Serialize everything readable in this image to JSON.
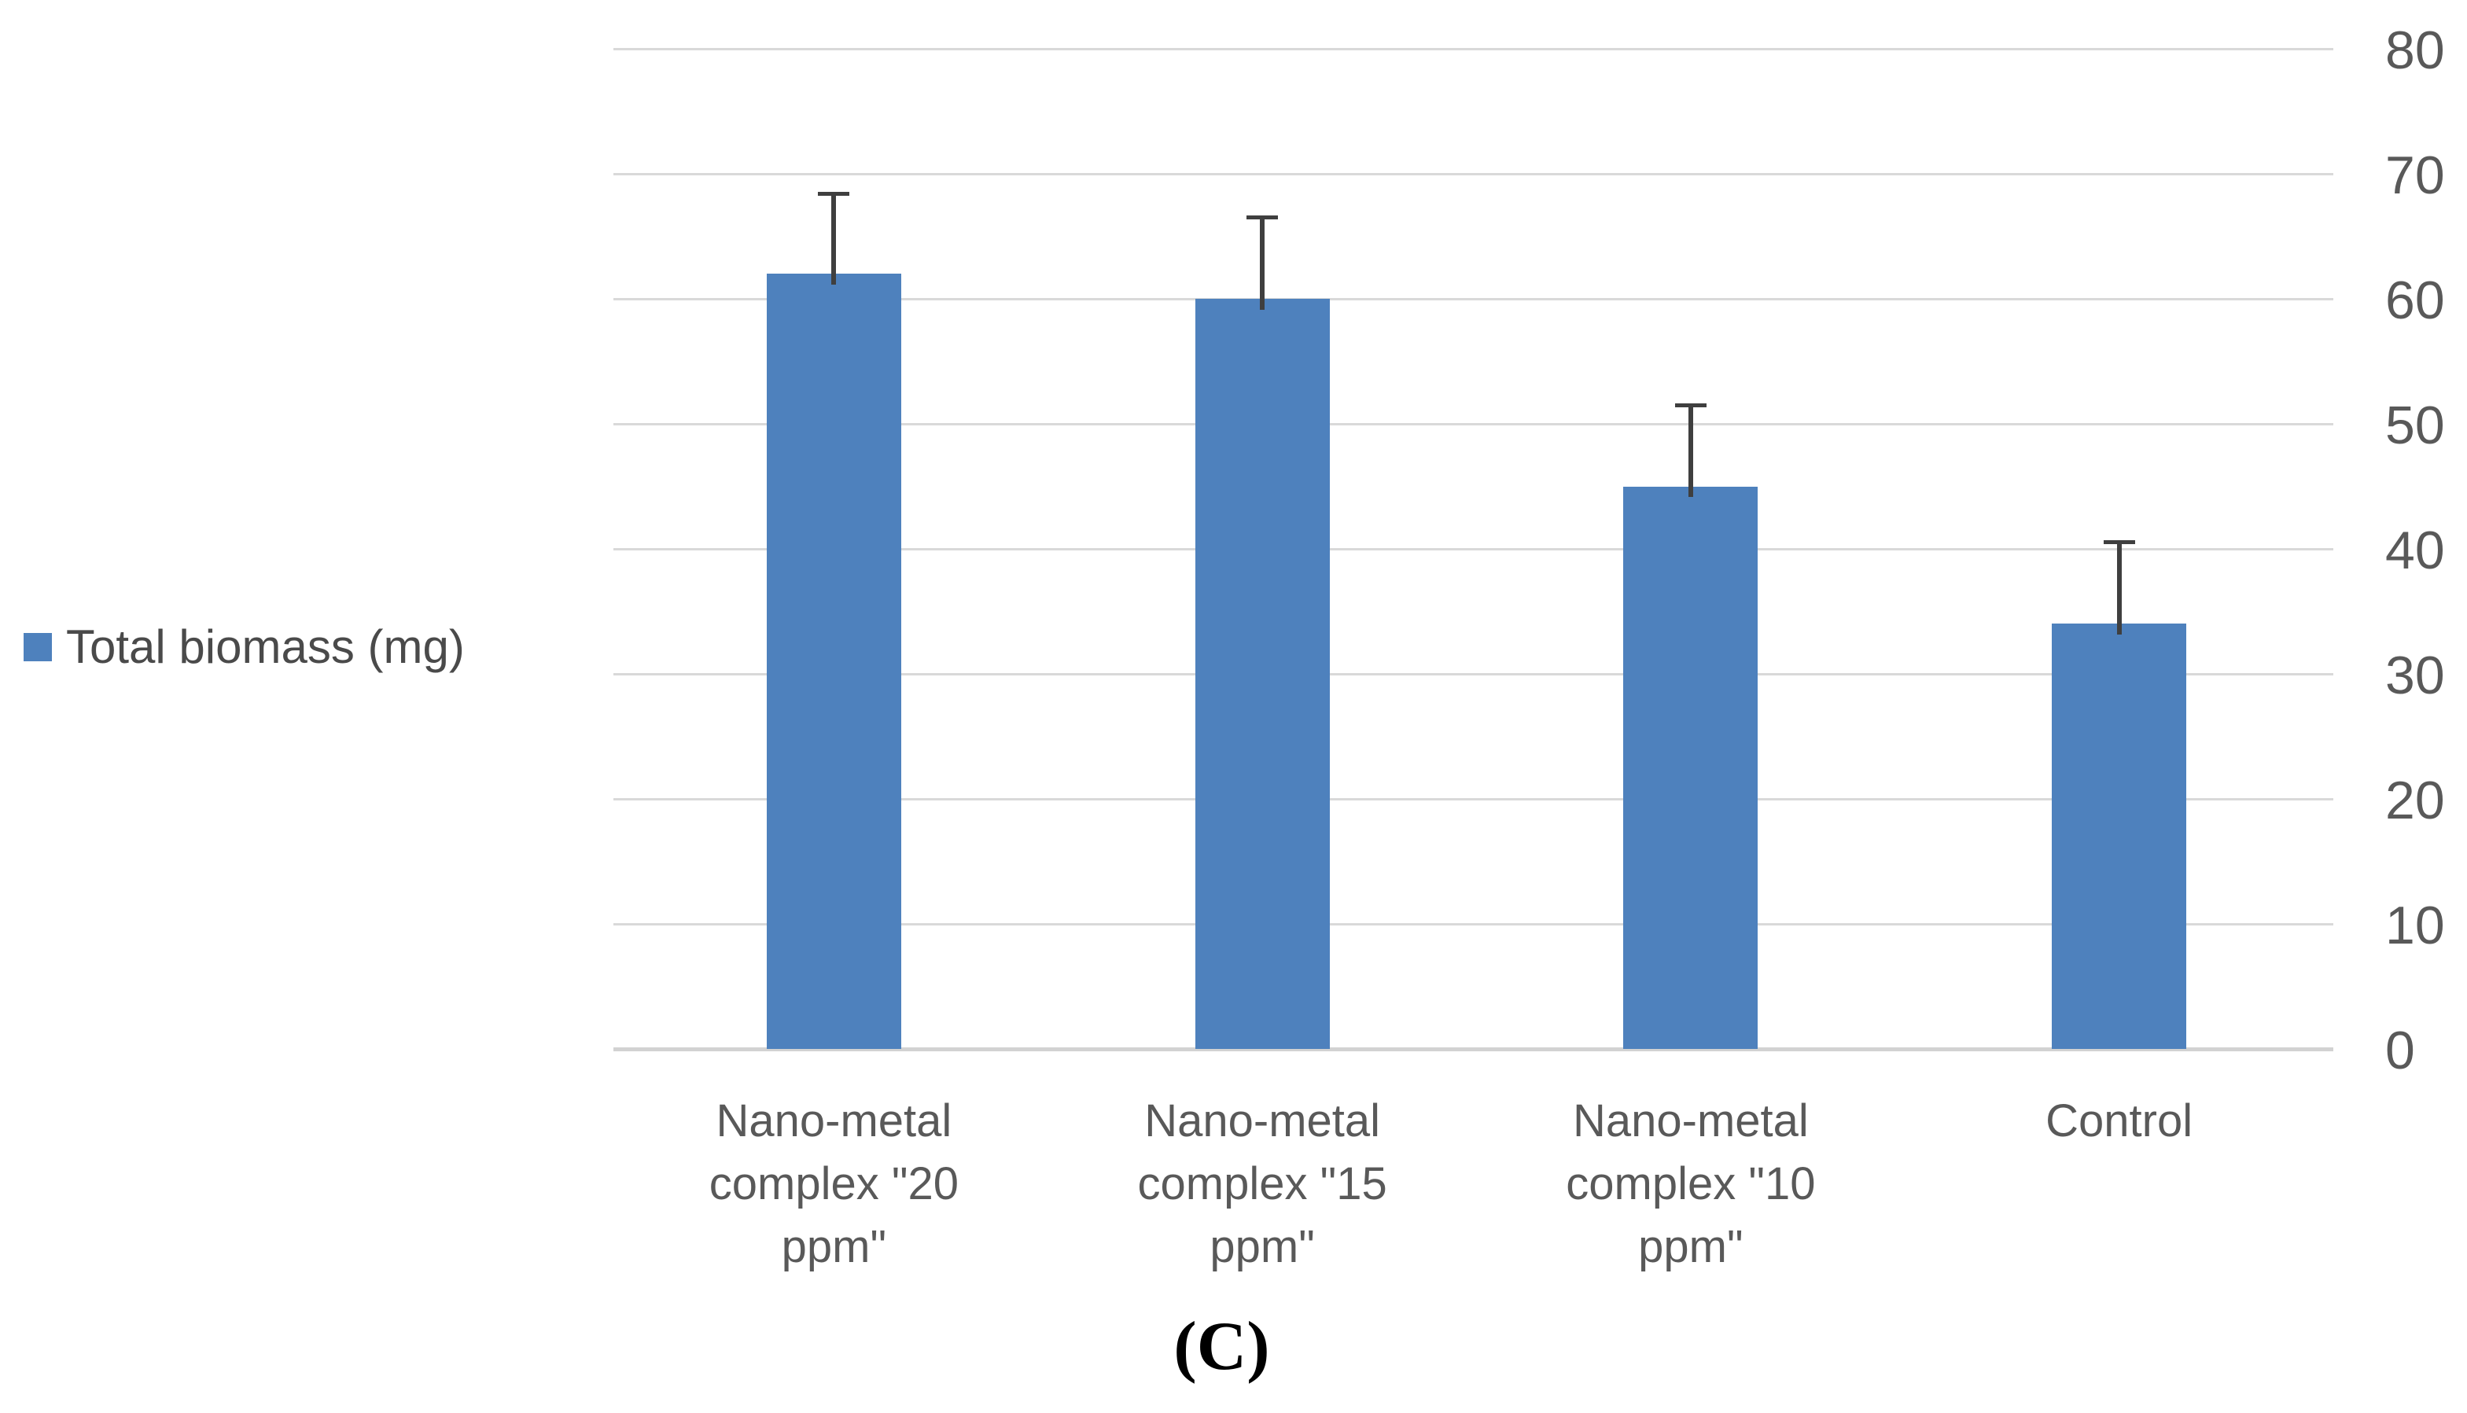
{
  "chart_data": {
    "type": "bar",
    "title": "",
    "xlabel": "",
    "ylabel": "",
    "legend_label": "Total biomass (mg)",
    "legend_position": "left-middle",
    "caption": "(C)",
    "categories": [
      "Nano-metal\ncomplex \"20\nppm\"",
      "Nano-metal\ncomplex \"15\nppm\"",
      "Nano-metal\ncomplex \"10\nppm\"",
      "Control"
    ],
    "series": [
      {
        "name": "Total biomass (mg)",
        "values": [
          62,
          60,
          45,
          34
        ],
        "errors_plus": [
          6.5,
          6.6,
          6.6,
          6.6
        ]
      }
    ],
    "ylim": [
      0,
      80
    ],
    "yticks": [
      0,
      10,
      20,
      30,
      40,
      50,
      60,
      70,
      80
    ],
    "yaxis_side": "right",
    "grid": true,
    "colors": {
      "bar": "#4E81BD",
      "error_bar": "#3F3F3F",
      "gridline": "#D9D9D9",
      "baseline": "#D2D2D2",
      "axis_text": "#595959",
      "legend_text": "#4A4A4A",
      "caption_text": "#000000"
    }
  }
}
